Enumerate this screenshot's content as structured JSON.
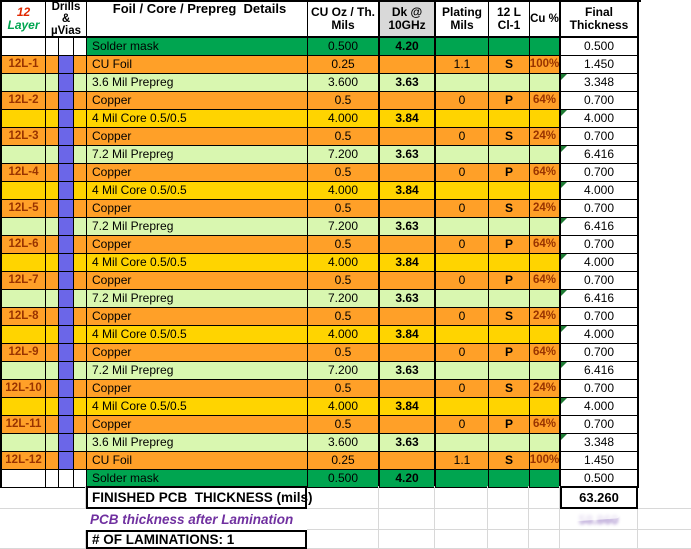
{
  "header": {
    "layer_count": "12",
    "layer_word": "Layer",
    "drills_line1": "Drills &",
    "drills_line2": "µVias",
    "details": "Foil / Core / Prepreg  Details",
    "cu_oz_line1": "CU Oz / Th.",
    "cu_oz_line2": "Mils",
    "dk_line1": "Dk @",
    "dk_line2": "10GHz",
    "plating_line1": "Plating",
    "plating_line2": "Mils",
    "cl_line1": "12 L",
    "cl_line2": "Cl-1",
    "cu_pct": "Cu %",
    "final_line1": "Final",
    "final_line2": "Thickness"
  },
  "colors": {
    "copper_foil_row": "#FFA028",
    "core_row": "#FFD400",
    "prepreg_row": "#D9F7B0",
    "solder_mask_row": "#00A550",
    "via_bar": "#6B66E8",
    "label_text": "#993300",
    "dk_header_bg": "#D9D9D9",
    "lamination_text": "#7030A0"
  },
  "rows": [
    {
      "label": "",
      "type": "mask",
      "via": false,
      "details": "Solder mask",
      "cu_oz": "0.500",
      "dk": "4.20",
      "plating": "",
      "cl": "",
      "cu_pct": "",
      "final": "0.500",
      "flag": false
    },
    {
      "label": "12L-1",
      "type": "foil",
      "via": true,
      "details": "CU Foil",
      "cu_oz": "0.25",
      "dk": "",
      "plating": "1.1",
      "cl": "S",
      "cu_pct": "100%",
      "final": "1.450",
      "flag": false
    },
    {
      "label": "",
      "type": "prepreg",
      "via": true,
      "details": "3.6 Mil Prepreg",
      "cu_oz": "3.600",
      "dk": "3.63",
      "plating": "",
      "cl": "",
      "cu_pct": "",
      "final": "3.348",
      "flag": true
    },
    {
      "label": "12L-2",
      "type": "copper",
      "via": true,
      "details": "Copper",
      "cu_oz": "0.5",
      "dk": "",
      "plating": "0",
      "cl": "P",
      "cu_pct": "64%",
      "final": "0.700",
      "flag": false
    },
    {
      "label": "",
      "type": "core",
      "via": true,
      "details": "4 Mil Core 0.5/0.5",
      "cu_oz": "4.000",
      "dk": "3.84",
      "plating": "",
      "cl": "",
      "cu_pct": "",
      "final": "4.000",
      "flag": true
    },
    {
      "label": "12L-3",
      "type": "copper",
      "via": true,
      "details": "Copper",
      "cu_oz": "0.5",
      "dk": "",
      "plating": "0",
      "cl": "S",
      "cu_pct": "24%",
      "final": "0.700",
      "flag": false
    },
    {
      "label": "",
      "type": "prepreg",
      "via": true,
      "details": "7.2 Mil Prepreg",
      "cu_oz": "7.200",
      "dk": "3.63",
      "plating": "",
      "cl": "",
      "cu_pct": "",
      "final": "6.416",
      "flag": true
    },
    {
      "label": "12L-4",
      "type": "copper",
      "via": true,
      "details": "Copper",
      "cu_oz": "0.5",
      "dk": "",
      "plating": "0",
      "cl": "P",
      "cu_pct": "64%",
      "final": "0.700",
      "flag": false
    },
    {
      "label": "",
      "type": "core",
      "via": true,
      "details": "4 Mil Core 0.5/0.5",
      "cu_oz": "4.000",
      "dk": "3.84",
      "plating": "",
      "cl": "",
      "cu_pct": "",
      "final": "4.000",
      "flag": true
    },
    {
      "label": "12L-5",
      "type": "copper",
      "via": true,
      "details": "Copper",
      "cu_oz": "0.5",
      "dk": "",
      "plating": "0",
      "cl": "S",
      "cu_pct": "24%",
      "final": "0.700",
      "flag": false
    },
    {
      "label": "",
      "type": "prepreg",
      "via": true,
      "details": "7.2 Mil Prepreg",
      "cu_oz": "7.200",
      "dk": "3.63",
      "plating": "",
      "cl": "",
      "cu_pct": "",
      "final": "6.416",
      "flag": true
    },
    {
      "label": "12L-6",
      "type": "copper",
      "via": true,
      "details": "Copper",
      "cu_oz": "0.5",
      "dk": "",
      "plating": "0",
      "cl": "P",
      "cu_pct": "64%",
      "final": "0.700",
      "flag": false
    },
    {
      "label": "",
      "type": "core",
      "via": true,
      "details": "4 Mil Core 0.5/0.5",
      "cu_oz": "4.000",
      "dk": "3.84",
      "plating": "",
      "cl": "",
      "cu_pct": "",
      "final": "4.000",
      "flag": true
    },
    {
      "label": "12L-7",
      "type": "copper",
      "via": true,
      "details": "Copper",
      "cu_oz": "0.5",
      "dk": "",
      "plating": "0",
      "cl": "P",
      "cu_pct": "64%",
      "final": "0.700",
      "flag": false
    },
    {
      "label": "",
      "type": "prepreg",
      "via": true,
      "details": "7.2 Mil Prepreg",
      "cu_oz": "7.200",
      "dk": "3.63",
      "plating": "",
      "cl": "",
      "cu_pct": "",
      "final": "6.416",
      "flag": true
    },
    {
      "label": "12L-8",
      "type": "copper",
      "via": true,
      "details": "Copper",
      "cu_oz": "0.5",
      "dk": "",
      "plating": "0",
      "cl": "S",
      "cu_pct": "24%",
      "final": "0.700",
      "flag": false
    },
    {
      "label": "",
      "type": "core",
      "via": true,
      "details": "4 Mil Core 0.5/0.5",
      "cu_oz": "4.000",
      "dk": "3.84",
      "plating": "",
      "cl": "",
      "cu_pct": "",
      "final": "4.000",
      "flag": true
    },
    {
      "label": "12L-9",
      "type": "copper",
      "via": true,
      "details": "Copper",
      "cu_oz": "0.5",
      "dk": "",
      "plating": "0",
      "cl": "P",
      "cu_pct": "64%",
      "final": "0.700",
      "flag": false
    },
    {
      "label": "",
      "type": "prepreg",
      "via": true,
      "details": "7.2 Mil Prepreg",
      "cu_oz": "7.200",
      "dk": "3.63",
      "plating": "",
      "cl": "",
      "cu_pct": "",
      "final": "6.416",
      "flag": true
    },
    {
      "label": "12L-10",
      "type": "copper",
      "via": true,
      "details": "Copper",
      "cu_oz": "0.5",
      "dk": "",
      "plating": "0",
      "cl": "S",
      "cu_pct": "24%",
      "final": "0.700",
      "flag": false
    },
    {
      "label": "",
      "type": "core",
      "via": true,
      "details": "4 Mil Core 0.5/0.5",
      "cu_oz": "4.000",
      "dk": "3.84",
      "plating": "",
      "cl": "",
      "cu_pct": "",
      "final": "4.000",
      "flag": true
    },
    {
      "label": "12L-11",
      "type": "copper",
      "via": true,
      "details": "Copper",
      "cu_oz": "0.5",
      "dk": "",
      "plating": "0",
      "cl": "P",
      "cu_pct": "64%",
      "final": "0.700",
      "flag": false
    },
    {
      "label": "",
      "type": "prepreg",
      "via": true,
      "details": "3.6 Mil Prepreg",
      "cu_oz": "3.600",
      "dk": "3.63",
      "plating": "",
      "cl": "",
      "cu_pct": "",
      "final": "3.348",
      "flag": true
    },
    {
      "label": "12L-12",
      "type": "foil",
      "via": true,
      "details": "CU Foil",
      "cu_oz": "0.25",
      "dk": "",
      "plating": "1.1",
      "cl": "S",
      "cu_pct": "100%",
      "final": "1.450",
      "flag": false
    },
    {
      "label": "",
      "type": "mask",
      "via": false,
      "details": "Solder mask",
      "cu_oz": "0.500",
      "dk": "4.20",
      "plating": "",
      "cl": "",
      "cu_pct": "",
      "final": "0.500",
      "flag": false
    }
  ],
  "footer": {
    "finished_label": "FINISHED PCB  THICKNESS (mils)",
    "finished_value": "63.260",
    "lamination_label": "PCB thickness after Lamination",
    "lamination_value": "58.860",
    "laminations_count_label": "# OF LAMINATIONS: 1"
  }
}
